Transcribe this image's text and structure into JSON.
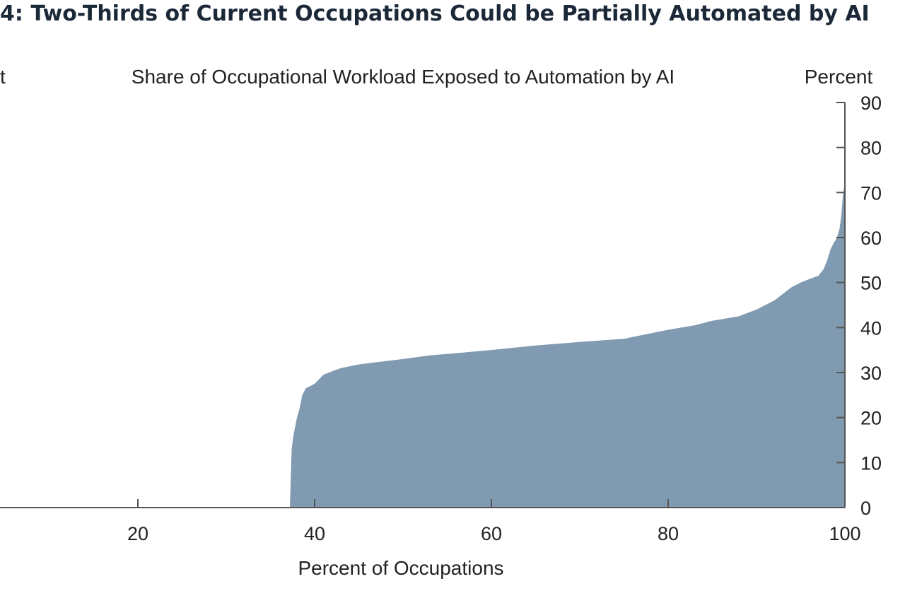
{
  "title": "4: Two-Thirds of Current Occupations Could be Partially Automated by AI",
  "colors": {
    "area": "#7f9ab1",
    "axis": "#555555",
    "text": "#222222"
  },
  "chart_data": {
    "type": "area",
    "subtitle": "Share of Occupational Workload Exposed to Automation by AI",
    "left_unit_label": "t",
    "right_unit_label": "Percent",
    "xlabel": "Percent of Occupations",
    "ylabel": "Percent",
    "xlim": [
      4,
      100
    ],
    "ylim": [
      0,
      90
    ],
    "x_ticks": [
      20,
      40,
      60,
      80,
      100
    ],
    "y_ticks": [
      0,
      10,
      20,
      30,
      40,
      50,
      60,
      70,
      80,
      90
    ],
    "series": [
      {
        "x": [
          37.2,
          37.4,
          37.6,
          37.8,
          38.0,
          38.3,
          38.6,
          39.0,
          39.5,
          40.0,
          40.5,
          41.0,
          42.0,
          43.0,
          45.0,
          47.0,
          50.0,
          53.0,
          56.0,
          60.0,
          65.0,
          70.0,
          75.0,
          80.0,
          83.0,
          85.0,
          88.0,
          90.0,
          91.0,
          92.0,
          93.0,
          94.0,
          95.0,
          96.0,
          97.0,
          97.6,
          98.0,
          98.4,
          98.8,
          99.1,
          99.4,
          99.6,
          99.8,
          100.0
        ],
        "y": [
          0,
          13,
          16,
          18,
          20,
          22,
          25,
          26.5,
          27,
          27.5,
          28.5,
          29.5,
          30.3,
          31.0,
          31.8,
          32.3,
          33.0,
          33.8,
          34.3,
          35.0,
          36.0,
          36.8,
          37.5,
          39.5,
          40.5,
          41.5,
          42.5,
          44.0,
          45.0,
          46.0,
          47.5,
          49.0,
          50.0,
          50.8,
          51.5,
          53.0,
          55.0,
          57.5,
          59.0,
          60.0,
          62.0,
          65.0,
          70.0,
          72.0
        ]
      }
    ]
  }
}
